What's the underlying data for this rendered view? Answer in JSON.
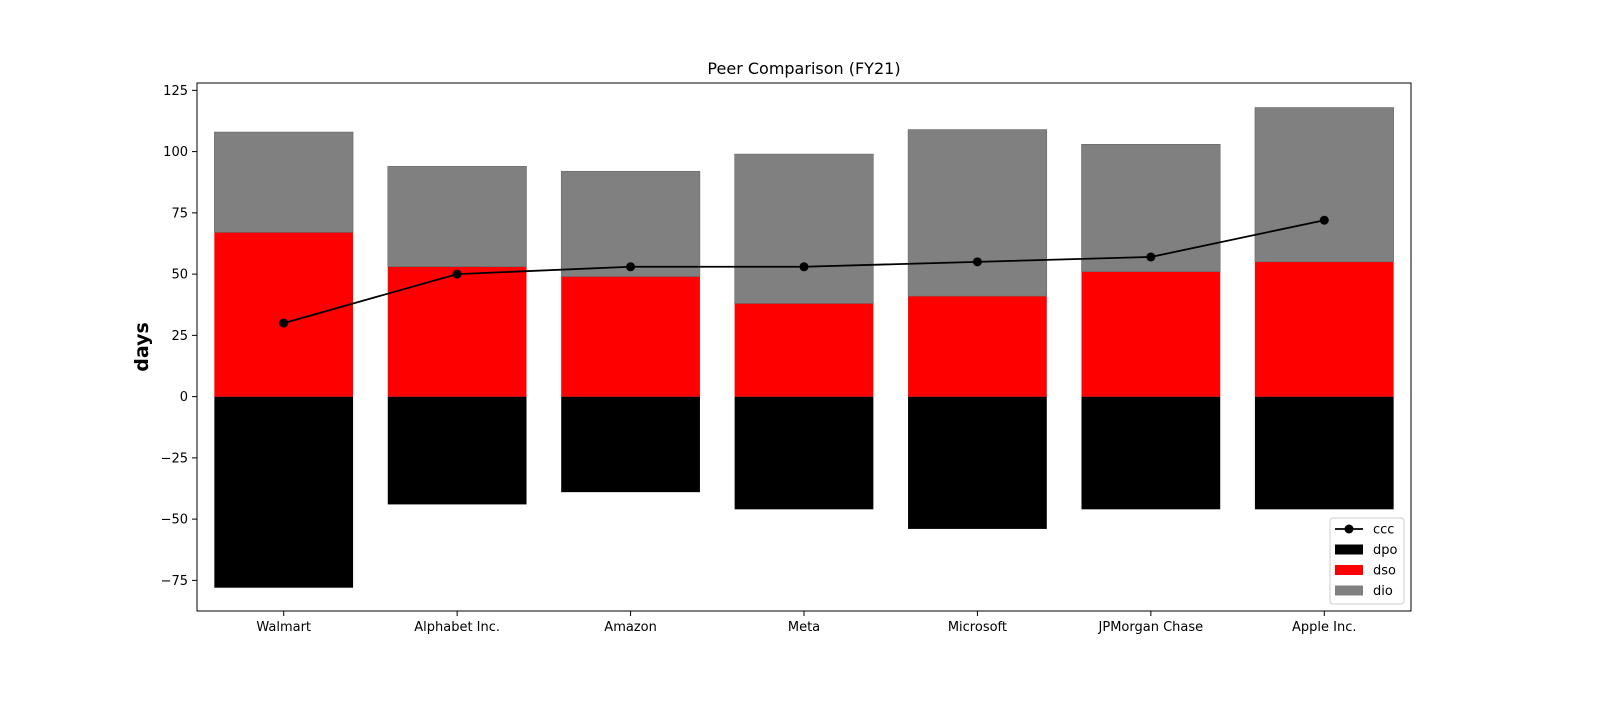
{
  "chart_data": {
    "type": "bar",
    "title": "Peer Comparison (FY21)",
    "xlabel": "",
    "ylabel": "days",
    "ylim": [
      -87.5,
      128
    ],
    "yticks": [
      -75,
      -50,
      -25,
      0,
      25,
      50,
      75,
      100,
      125
    ],
    "ytick_labels": [
      "−75",
      "−50",
      "−25",
      "0",
      "25",
      "50",
      "75",
      "100",
      "125"
    ],
    "stacked": true,
    "grid": false,
    "legend_position": "lower-right",
    "categories": [
      "Walmart",
      "Alphabet Inc.",
      "Amazon",
      "Meta",
      "Microsoft",
      "JPMorgan Chase",
      "Apple Inc."
    ],
    "series": [
      {
        "name": "dpo",
        "type": "bar",
        "color": "#000000",
        "values": [
          -78,
          -44,
          -39,
          -46,
          -54,
          -46,
          -46
        ]
      },
      {
        "name": "dso",
        "type": "bar",
        "color": "#ff0000",
        "values": [
          67,
          53,
          49,
          38,
          41,
          51,
          55
        ]
      },
      {
        "name": "dio",
        "type": "bar",
        "color": "#808080",
        "values": [
          41,
          41,
          43,
          61,
          68,
          52,
          63
        ]
      },
      {
        "name": "ccc",
        "type": "line",
        "color": "#000000",
        "marker": "circle",
        "values": [
          30,
          50,
          53,
          53,
          55,
          57,
          72
        ]
      }
    ],
    "legend": [
      "ccc",
      "dpo",
      "dso",
      "dio"
    ]
  }
}
